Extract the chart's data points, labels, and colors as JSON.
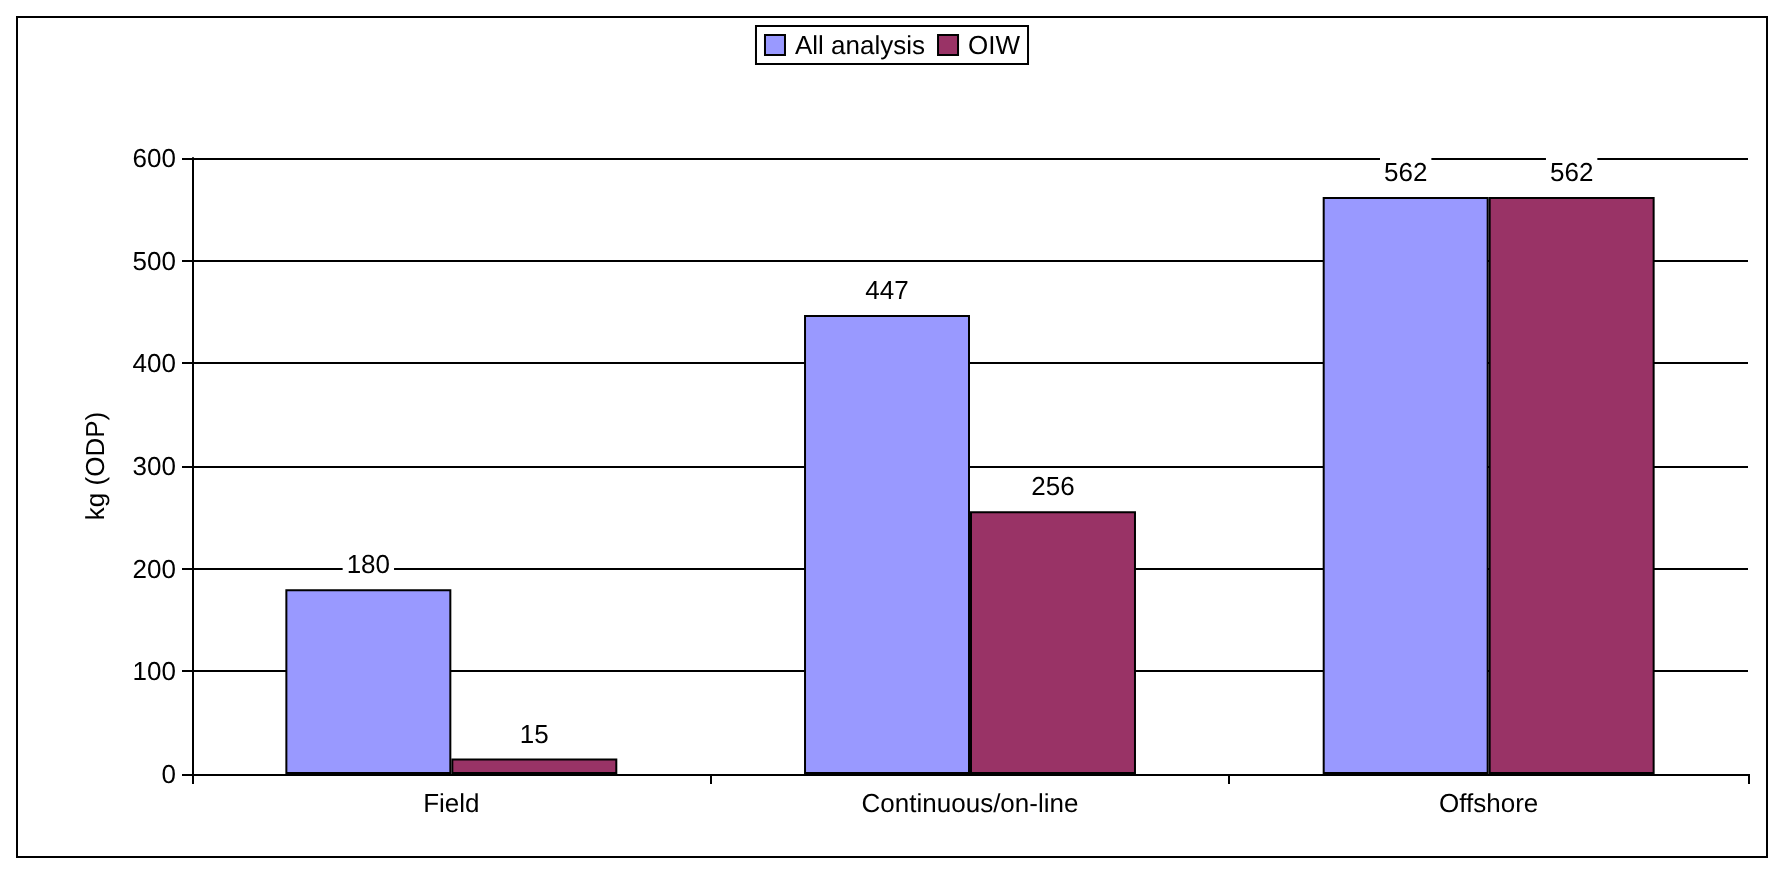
{
  "chart_data": {
    "type": "bar",
    "ylabel": "kg (ODP)",
    "categories": [
      "Field",
      "Continuous/on-line",
      "Offshore"
    ],
    "series": [
      {
        "name": "All analysis",
        "color": "#9999ff",
        "values": [
          180,
          447,
          562
        ]
      },
      {
        "name": "OIW",
        "color": "#993366",
        "values": [
          15,
          256,
          562
        ]
      }
    ],
    "ylim": [
      0,
      600
    ],
    "yticks": [
      0,
      100,
      200,
      300,
      400,
      500,
      600
    ],
    "grid": "y",
    "legend": "top",
    "data_labels": true
  }
}
